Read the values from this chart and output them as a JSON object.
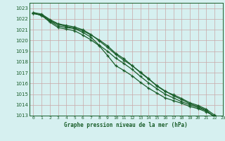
{
  "title": "Graphe pression niveau de la mer (hPa)",
  "xlim": [
    -0.5,
    23
  ],
  "ylim": [
    1013,
    1023.5
  ],
  "xticks": [
    0,
    1,
    2,
    3,
    4,
    5,
    6,
    7,
    8,
    9,
    10,
    11,
    12,
    13,
    14,
    15,
    16,
    17,
    18,
    19,
    20,
    21,
    22,
    23
  ],
  "yticks": [
    1013,
    1014,
    1015,
    1016,
    1017,
    1018,
    1019,
    1020,
    1021,
    1022,
    1023
  ],
  "bg_color": "#d6f0f0",
  "grid_color": "#c8a8a8",
  "line_color": "#1a5e2a",
  "tick_color": "#1a5e2a",
  "label_color": "#1a5e2a",
  "line_width": 0.9,
  "marker": "+",
  "marker_size": 3.5,
  "marker_edge_width": 0.9,
  "lines": [
    [
      1022.5,
      1022.4,
      1021.85,
      1021.5,
      1021.3,
      1021.15,
      1020.9,
      1020.5,
      1020.05,
      1019.5,
      1018.8,
      1018.3,
      1017.65,
      1017.0,
      1016.4,
      1015.8,
      1015.3,
      1014.85,
      1014.5,
      1014.1,
      1013.85,
      1013.5,
      1012.85,
      1012.5
    ],
    [
      1022.5,
      1022.35,
      1021.7,
      1021.2,
      1021.05,
      1020.9,
      1020.5,
      1020.05,
      1019.5,
      1018.6,
      1017.65,
      1017.2,
      1016.7,
      1016.1,
      1015.55,
      1015.1,
      1014.65,
      1014.4,
      1014.15,
      1013.85,
      1013.65,
      1013.35,
      1012.95,
      1012.55
    ],
    [
      1022.55,
      1022.3,
      1021.8,
      1021.35,
      1021.2,
      1021.1,
      1020.75,
      1020.3,
      1019.55,
      1019.0,
      1018.35,
      1017.85,
      1017.3,
      1016.65,
      1016.05,
      1015.5,
      1015.0,
      1014.65,
      1014.3,
      1014.0,
      1013.75,
      1013.45,
      1012.9,
      1012.52
    ],
    [
      1022.6,
      1022.45,
      1021.95,
      1021.55,
      1021.4,
      1021.25,
      1021.0,
      1020.55,
      1019.95,
      1019.35,
      1018.7,
      1018.15,
      1017.65,
      1017.05,
      1016.45,
      1015.75,
      1015.25,
      1014.95,
      1014.6,
      1014.2,
      1013.95,
      1013.6,
      1013.05,
      1012.55
    ]
  ]
}
